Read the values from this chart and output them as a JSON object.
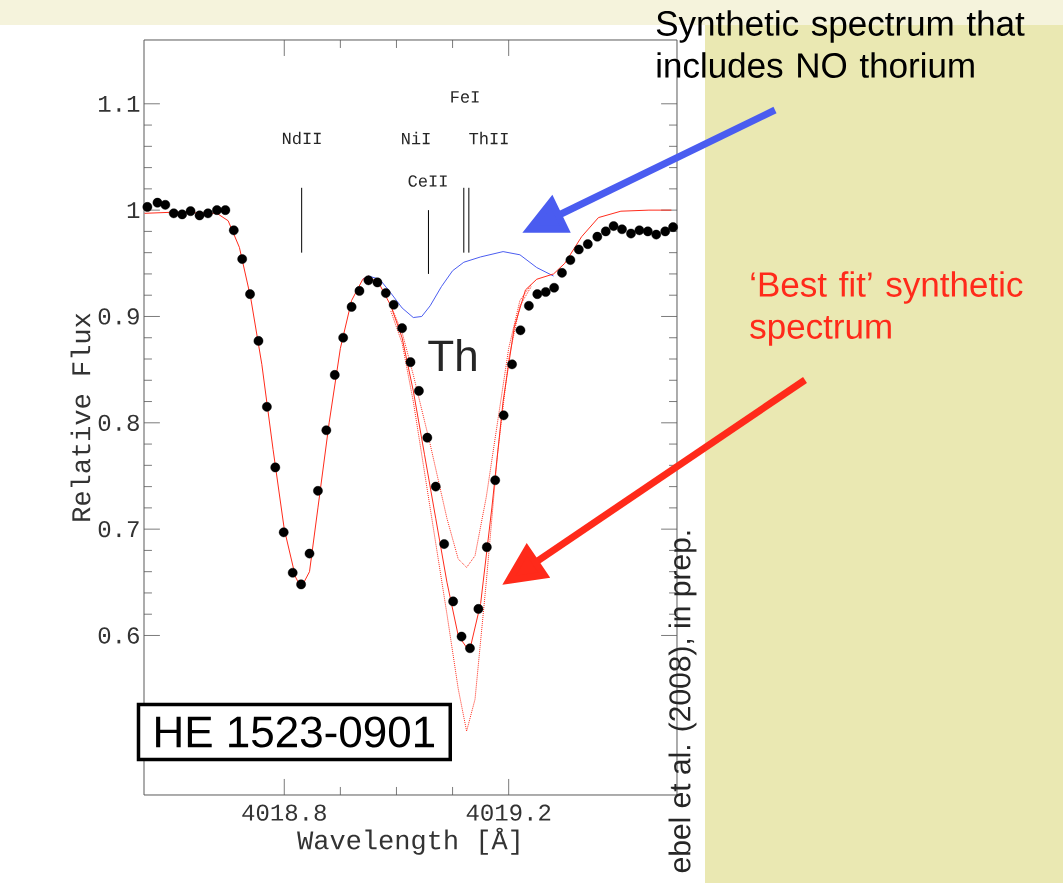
{
  "chart_data": {
    "type": "scatter",
    "xlabel": "Wavelength [Å]",
    "ylabel": "Relative Flux",
    "xlim": [
      4018.55,
      4019.5
    ],
    "ylim": [
      0.45,
      1.16
    ],
    "xticks": [
      4018.8,
      4019.2
    ],
    "yticks": [
      0.6,
      0.7,
      0.8,
      0.9,
      1,
      1.1
    ],
    "series": [
      {
        "type": "line",
        "color": "#4a5cf0",
        "marker": "none",
        "line_style": "solid",
        "x": [
          4018.94,
          4018.95,
          4018.97,
          4018.99,
          4019.01,
          4019.03,
          4019.045,
          4019.06,
          4019.08,
          4019.1,
          4019.12,
          4019.15,
          4019.19,
          4019.22,
          4019.25,
          4019.28
        ],
        "values": [
          0.935,
          0.938,
          0.935,
          0.922,
          0.908,
          0.899,
          0.9,
          0.91,
          0.928,
          0.943,
          0.951,
          0.956,
          0.961,
          0.958,
          0.946,
          0.938
        ]
      },
      {
        "name": "‘Best fit’ synthetic spectrum",
        "type": "line",
        "color": "#ff2a1a",
        "marker": "none",
        "line_style": "solid",
        "x": [
          4018.551,
          4018.6,
          4018.68,
          4018.7,
          4018.72,
          4018.74,
          4018.76,
          4018.78,
          4018.8,
          4018.82,
          4018.83,
          4018.845,
          4018.86,
          4018.88,
          4018.9,
          4018.92,
          4018.94,
          4018.95,
          4018.97,
          4018.99,
          4019.01,
          4019.03,
          4019.05,
          4019.07,
          4019.09,
          4019.11,
          4019.13,
          4019.15,
          4019.17,
          4019.19,
          4019.21,
          4019.23,
          4019.25,
          4019.28,
          4019.3,
          4019.33,
          4019.36,
          4019.4,
          4019.45,
          4019.49
        ],
        "values": [
          0.997,
          0.998,
          0.997,
          0.99,
          0.965,
          0.918,
          0.855,
          0.775,
          0.7,
          0.655,
          0.645,
          0.66,
          0.72,
          0.8,
          0.87,
          0.915,
          0.935,
          0.938,
          0.93,
          0.91,
          0.88,
          0.83,
          0.77,
          0.71,
          0.65,
          0.6,
          0.585,
          0.63,
          0.72,
          0.82,
          0.89,
          0.925,
          0.935,
          0.94,
          0.95,
          0.975,
          0.993,
          0.999,
          1.0,
          1.0
        ]
      },
      {
        "type": "line",
        "color": "#ff2a1a",
        "marker": "none",
        "line_style": "dotted",
        "x": [
          4018.99,
          4019.01,
          4019.03,
          4019.06,
          4019.09,
          4019.11,
          4019.125,
          4019.14,
          4019.16,
          4019.18,
          4019.2,
          4019.22,
          4019.24
        ],
        "values": [
          0.91,
          0.885,
          0.845,
          0.78,
          0.71,
          0.672,
          0.664,
          0.675,
          0.73,
          0.8,
          0.87,
          0.915,
          0.93
        ]
      },
      {
        "type": "line",
        "color": "#ff2a1a",
        "marker": "none",
        "line_style": "dotted",
        "x": [
          4018.99,
          4019.01,
          4019.03,
          4019.06,
          4019.09,
          4019.11,
          4019.125,
          4019.14,
          4019.16,
          4019.18,
          4019.2,
          4019.22,
          4019.24
        ],
        "values": [
          0.905,
          0.875,
          0.82,
          0.72,
          0.62,
          0.55,
          0.51,
          0.54,
          0.65,
          0.77,
          0.86,
          0.91,
          0.928
        ]
      },
      {
        "type": "line",
        "color": "#000000",
        "marker": "none",
        "line_style": "solid",
        "x": [
          4018.831,
          4018.831
        ],
        "values": [
          0.96,
          1.021
        ]
      },
      {
        "type": "line",
        "color": "#000000",
        "marker": "none",
        "line_style": "solid",
        "x": [
          4019.057,
          4019.057
        ],
        "values": [
          0.94,
          1.0
        ]
      },
      {
        "type": "line",
        "color": "#000000",
        "marker": "none",
        "line_style": "solid",
        "x": [
          4019.12,
          4019.12
        ],
        "values": [
          0.96,
          1.021
        ]
      },
      {
        "type": "line",
        "color": "#000000",
        "marker": "none",
        "line_style": "solid",
        "x": [
          4019.129,
          4019.129
        ],
        "values": [
          0.96,
          1.021
        ]
      },
      {
        "color": "#000000",
        "marker": "circle",
        "x": [
          4018.556,
          4018.574,
          4018.588,
          4018.603,
          4018.618,
          4018.633,
          4018.649,
          4018.664,
          4018.68,
          4018.695,
          4018.71,
          4018.725,
          4018.739,
          4018.754,
          4018.769,
          4018.784,
          4018.799,
          4018.815,
          4018.83,
          4018.845,
          4018.86,
          4018.875,
          4018.89,
          4018.905,
          4018.92,
          4018.934,
          4018.95,
          4018.966,
          4018.981,
          4018.995,
          4019.01,
          4019.025,
          4019.04,
          4019.055,
          4019.07,
          4019.085,
          4019.101,
          4019.116,
          4019.131,
          4019.146,
          4019.161,
          4019.176,
          4019.191,
          4019.206,
          4019.221,
          4019.236,
          4019.251,
          4019.266,
          4019.281,
          4019.295,
          4019.31,
          4019.325,
          4019.341,
          4019.358,
          4019.373,
          4019.387,
          4019.402,
          4019.418,
          4019.433,
          4019.448,
          4019.463,
          4019.479,
          4019.493
        ],
        "values": [
          1.003,
          1.007,
          1.005,
          0.997,
          0.996,
          0.999,
          0.995,
          0.997,
          1.0,
          1.0,
          0.981,
          0.954,
          0.921,
          0.877,
          0.815,
          0.758,
          0.697,
          0.659,
          0.648,
          0.677,
          0.736,
          0.793,
          0.845,
          0.88,
          0.909,
          0.924,
          0.934,
          0.932,
          0.922,
          0.911,
          0.889,
          0.857,
          0.83,
          0.786,
          0.74,
          0.686,
          0.632,
          0.599,
          0.588,
          0.625,
          0.683,
          0.746,
          0.807,
          0.855,
          0.887,
          0.91,
          0.921,
          0.923,
          0.927,
          0.941,
          0.953,
          0.963,
          0.968,
          0.975,
          0.98,
          0.985,
          0.982,
          0.978,
          0.981,
          0.98,
          0.977,
          0.98,
          0.984
        ]
      }
    ],
    "annotations": [
      "NdII",
      "NiI",
      "CeII",
      "FeI",
      "ThII",
      "Th",
      "HE 1523-0901",
      "ebel et al. (2008), in prep.",
      "Synthetic spectrum that includes NO thorium"
    ]
  }
}
